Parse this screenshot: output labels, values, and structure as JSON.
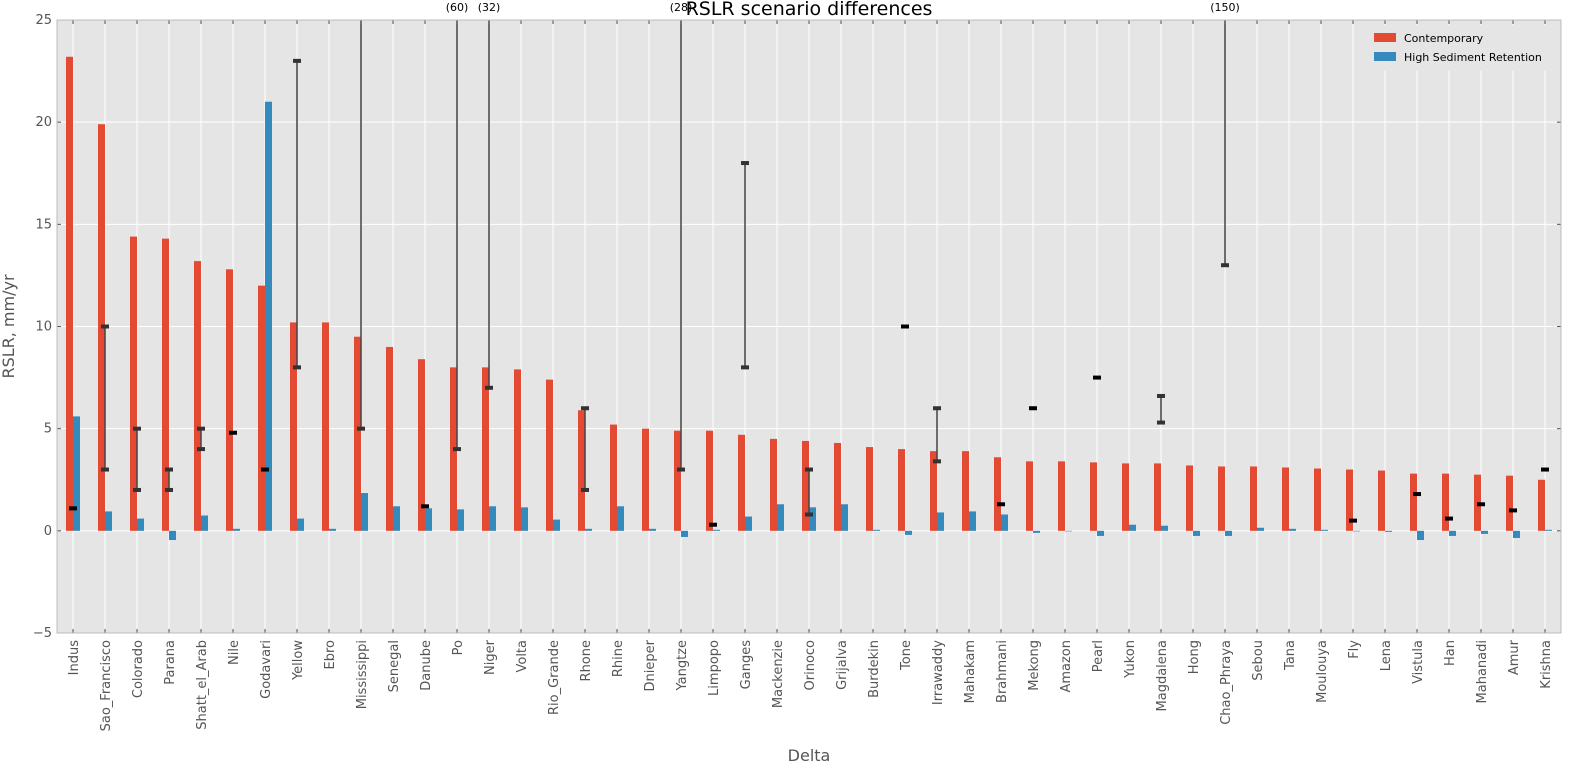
{
  "chart_data": {
    "type": "bar",
    "title": "RSLR scenario differences",
    "xlabel": "Delta",
    "ylabel": "RSLR, mm/yr",
    "ylim": [
      -5,
      25
    ],
    "yticks": [
      -5,
      0,
      5,
      10,
      15,
      20,
      25
    ],
    "ytick_labels": [
      "−5",
      "0",
      "5",
      "10",
      "15",
      "20",
      "25"
    ],
    "grid": true,
    "legend_position": "top-right",
    "categories": [
      "Indus",
      "Sao_Francisco",
      "Colorado",
      "Parana",
      "Shatt_el_Arab",
      "Nile",
      "Godavari",
      "Yellow",
      "Ebro",
      "Mississippi",
      "Senegal",
      "Danube",
      "Po",
      "Niger",
      "Volta",
      "Rio_Grande",
      "Rhone",
      "Rhine",
      "Dnieper",
      "Yangtze",
      "Limpopo",
      "Ganges",
      "Mackenzie",
      "Orinoco",
      "Grijalva",
      "Burdekin",
      "Tone",
      "Irrawaddy",
      "Mahakam",
      "Brahmani",
      "Mekong",
      "Amazon",
      "Pearl",
      "Yukon",
      "Magdalena",
      "Hong",
      "Chao_Phraya",
      "Sebou",
      "Tana",
      "Moulouya",
      "Fly",
      "Lena",
      "Vistula",
      "Han",
      "Mahanadi",
      "Amur",
      "Krishna"
    ],
    "series": [
      {
        "name": "Contemporary",
        "color": "#e24a33",
        "values": [
          23.2,
          19.9,
          14.4,
          14.3,
          13.2,
          12.8,
          12.0,
          10.2,
          10.2,
          9.5,
          9.0,
          8.4,
          8.0,
          8.0,
          7.9,
          7.4,
          5.9,
          5.2,
          5.0,
          4.9,
          4.9,
          4.7,
          4.5,
          4.4,
          4.3,
          4.1,
          4.0,
          3.9,
          3.9,
          3.6,
          3.4,
          3.4,
          3.35,
          3.3,
          3.3,
          3.2,
          3.15,
          3.15,
          3.1,
          3.05,
          3.0,
          2.95,
          2.8,
          2.8,
          2.75,
          2.7,
          2.5
        ]
      },
      {
        "name": "High Sediment Retention",
        "color": "#348abd",
        "values": [
          5.6,
          0.95,
          0.6,
          -0.45,
          0.75,
          0.1,
          21.0,
          0.6,
          0.1,
          1.85,
          1.2,
          1.1,
          1.05,
          1.2,
          1.15,
          0.55,
          0.1,
          1.2,
          0.1,
          -0.3,
          0.05,
          0.7,
          1.3,
          1.15,
          1.3,
          0.05,
          -0.2,
          0.9,
          0.95,
          0.8,
          -0.1,
          0.0,
          -0.25,
          0.3,
          0.25,
          -0.25,
          -0.25,
          0.15,
          0.1,
          0.05,
          0.0,
          -0.05,
          -0.45,
          -0.25,
          -0.15,
          -0.35,
          0.05
        ]
      }
    ],
    "observed_ranges": [
      {
        "category": "Indus",
        "low": 1.1,
        "high": null
      },
      {
        "category": "Sao_Francisco",
        "low": 3.0,
        "high": 10.0
      },
      {
        "category": "Colorado",
        "low": 2.0,
        "high": 5.0
      },
      {
        "category": "Parana",
        "low": 2.0,
        "high": 3.0
      },
      {
        "category": "Shatt_el_Arab",
        "low": 4.0,
        "high": 5.0
      },
      {
        "category": "Nile",
        "low": 4.8,
        "high": null
      },
      {
        "category": "Godavari",
        "low": 3.0,
        "high": null
      },
      {
        "category": "Yellow",
        "low": 8.0,
        "high": 23.0
      },
      {
        "category": "Mississippi",
        "low": 5.0,
        "high": 25.0
      },
      {
        "category": "Danube",
        "low": 1.2,
        "high": null
      },
      {
        "category": "Po",
        "low": 4.0,
        "high": 25.0
      },
      {
        "category": "Niger",
        "low": 7.0,
        "high": 25.0
      },
      {
        "category": "Rhone",
        "low": 2.0,
        "high": 6.0
      },
      {
        "category": "Yangtze",
        "low": 3.0,
        "high": 25.0
      },
      {
        "category": "Limpopo",
        "low": 0.3,
        "high": null
      },
      {
        "category": "Ganges",
        "low": 8.0,
        "high": 18.0
      },
      {
        "category": "Orinoco",
        "low": 0.8,
        "high": 3.0
      },
      {
        "category": "Tone",
        "low": 10.0,
        "high": null
      },
      {
        "category": "Irrawaddy",
        "low": 3.4,
        "high": 6.0
      },
      {
        "category": "Brahmani",
        "low": 1.3,
        "high": null
      },
      {
        "category": "Mekong",
        "low": 6.0,
        "high": null
      },
      {
        "category": "Pearl",
        "low": 7.5,
        "high": null
      },
      {
        "category": "Magdalena",
        "low": 5.3,
        "high": 6.6
      },
      {
        "category": "Chao_Phraya",
        "low": 13.0,
        "high": 25.0
      },
      {
        "category": "Fly",
        "low": 0.5,
        "high": null
      },
      {
        "category": "Vistula",
        "low": 1.8,
        "high": null
      },
      {
        "category": "Han",
        "low": 0.6,
        "high": null
      },
      {
        "category": "Mahanadi",
        "low": 1.3,
        "high": null
      },
      {
        "category": "Amur",
        "low": 1.0,
        "high": null
      },
      {
        "category": "Krishna",
        "low": 3.0,
        "high": null
      }
    ],
    "annotations": [
      {
        "text": "(60)",
        "category": "Po"
      },
      {
        "text": "(32)",
        "category": "Niger"
      },
      {
        "text": "(28)",
        "category": "Yangtze"
      },
      {
        "text": "(150)",
        "category": "Chao_Phraya"
      }
    ]
  }
}
